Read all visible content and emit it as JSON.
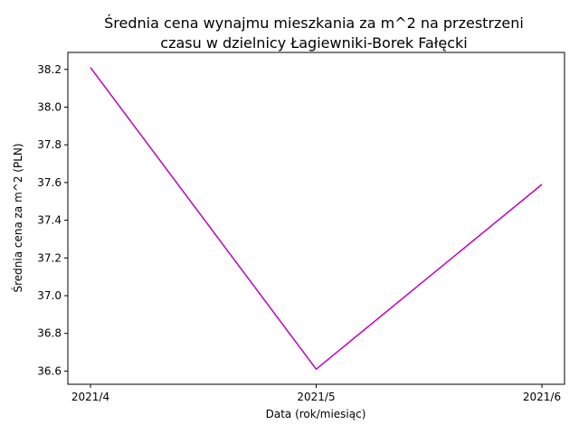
{
  "chart_data": {
    "type": "line",
    "title_line1": "Średnia cena wynajmu mieszkania za m^2 na przestrzeni",
    "title_line2": "czasu w dzielnicy  Łagiewniki-Borek Fałęcki",
    "xlabel": "Data (rok/miesiąc)",
    "ylabel": "Średnia cena za m^2 (PLN)",
    "categories": [
      "2021/4",
      "2021/5",
      "2021/6"
    ],
    "series": [
      {
        "values": [
          38.21,
          36.61,
          37.59
        ],
        "color": "#bf00bf"
      }
    ],
    "ylim": [
      36.53,
      38.29
    ],
    "yticks": [
      36.6,
      36.8,
      37.0,
      37.2,
      37.4,
      37.6,
      37.8,
      38.0,
      38.2
    ],
    "ytick_labels": [
      "36.6",
      "36.8",
      "37.0",
      "37.2",
      "37.4",
      "37.6",
      "37.8",
      "38.0",
      "38.2"
    ],
    "grid": false,
    "legend": "none"
  }
}
